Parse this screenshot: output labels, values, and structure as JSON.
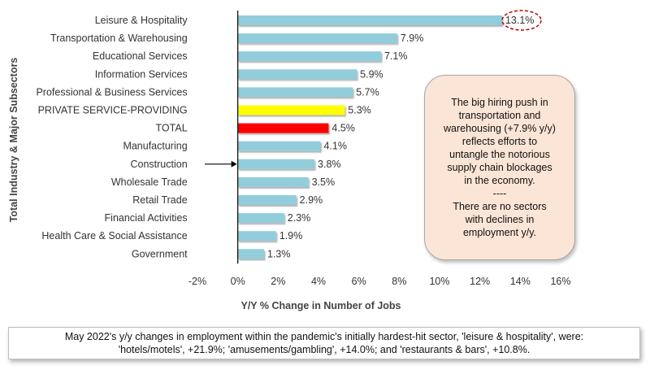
{
  "chart_data": {
    "type": "bar",
    "orientation": "horizontal",
    "categories": [
      "Leisure & Hospitality",
      "Transportation & Warehousing",
      "Educational Services",
      "Information Services",
      "Professional & Business Services",
      "PRIVATE SERVICE-PROVIDING",
      "TOTAL",
      "Manufacturing",
      "Construction",
      "Wholesale Trade",
      "Retail Trade",
      "Financial Activities",
      "Health Care & Social Assistance",
      "Government"
    ],
    "values": [
      13.1,
      7.9,
      7.1,
      5.9,
      5.7,
      5.3,
      4.5,
      4.1,
      3.8,
      3.5,
      2.9,
      2.3,
      1.9,
      1.3
    ],
    "value_labels": [
      "13.1%",
      "7.9%",
      "7.1%",
      "5.9%",
      "5.7%",
      "5.3%",
      "4.5%",
      "4.1%",
      "3.8%",
      "3.5%",
      "2.9%",
      "2.3%",
      "1.9%",
      "1.3%"
    ],
    "bar_colors": [
      "#92cddc",
      "#92cddc",
      "#92cddc",
      "#92cddc",
      "#92cddc",
      "#ffff00",
      "#ff0000",
      "#92cddc",
      "#92cddc",
      "#92cddc",
      "#92cddc",
      "#92cddc",
      "#92cddc",
      "#92cddc"
    ],
    "xlim": [
      -2,
      16
    ],
    "xticks": [
      -2,
      0,
      2,
      4,
      6,
      8,
      10,
      12,
      14,
      16
    ],
    "xtick_labels": [
      "-2%",
      "0%",
      "2%",
      "4%",
      "6%",
      "8%",
      "10%",
      "12%",
      "14%",
      "16%"
    ],
    "xlabel": "Y/Y % Change in Number of Jobs",
    "ylabel": "Total Industry & Major Subsectors",
    "grid": false,
    "highlighted_value": "Leisure & Hospitality",
    "arrow_points_to": "Construction"
  },
  "annotation": {
    "lines": [
      "The big hiring push in",
      "transportation and",
      "warehousing (+7.9% y/y)",
      "reflects efforts to",
      "untangle the notorious",
      "supply chain blockages",
      "in the economy.",
      "----",
      "There are no sectors",
      "with declines in",
      "employment y/y."
    ]
  },
  "caption": {
    "line1": "May 2022's y/y changes in employment within the pandemic's initially hardest-hit sector, 'leisure & hospitality', were:",
    "line2": "'hotels/motels', +21.9%; 'amusements/gambling', +14.0%; and 'restaurants & bars', +10.8%."
  },
  "colors": {
    "bar_default": "#92cddc",
    "bar_private": "#ffff00",
    "bar_total": "#ff0000",
    "highlight_ellipse": "#c00000",
    "note_fill": "#fbe5d6"
  }
}
